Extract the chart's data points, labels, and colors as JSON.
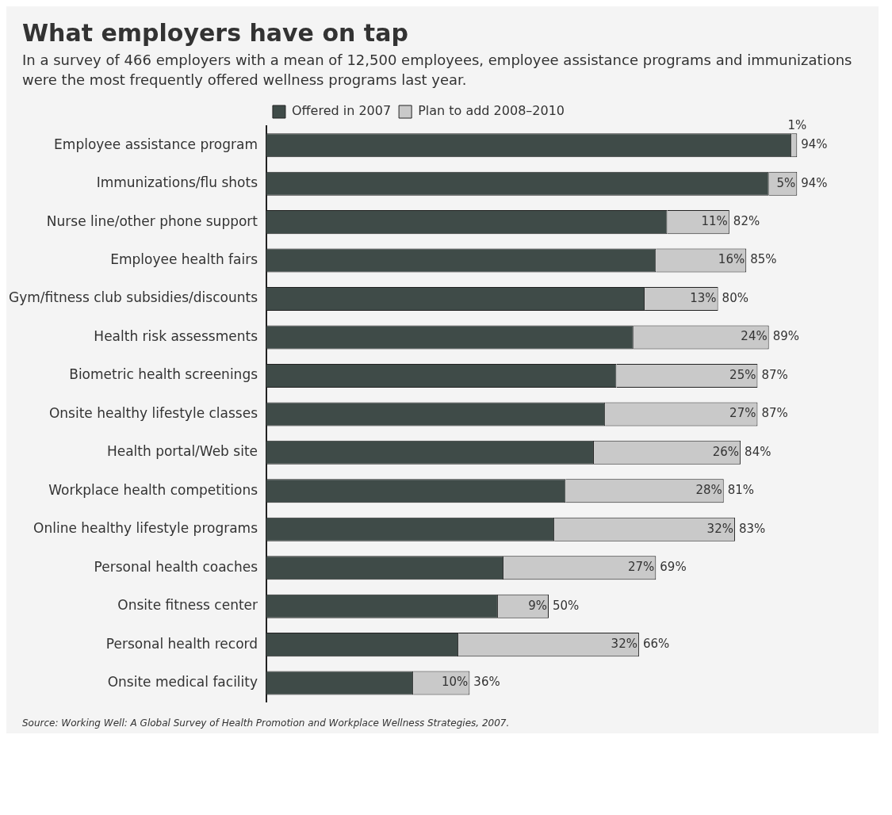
{
  "chart_data": {
    "type": "bar",
    "orientation": "horizontal",
    "stacked": true,
    "title": "What employers have on tap",
    "subtitle": "In a survey of 466 employers with a mean of 12,500 employees, employee assistance programs and immunizations were the most frequently offered wellness programs last year.",
    "categories": [
      "Employee assistance program",
      "Immunizations/flu shots",
      "Nurse line/other phone support",
      "Employee health fairs",
      "Gym/fitness club subsidies/discounts",
      "Health risk assessments",
      "Biometric health screenings",
      "Onsite healthy lifestyle classes",
      "Health portal/Web site",
      "Workplace health competitions",
      "Online healthy lifestyle programs",
      "Personal health coaches",
      "Onsite fitness center",
      "Personal health record",
      "Onsite medical facility"
    ],
    "series": [
      {
        "name": "Offered in 2007",
        "color": "#3f4b48",
        "values": [
          93,
          89,
          71,
          69,
          67,
          65,
          62,
          60,
          58,
          53,
          51,
          42,
          41,
          34,
          26
        ]
      },
      {
        "name": "Plan to add 2008–2010",
        "color": "#c9c9c9",
        "values": [
          1,
          5,
          11,
          16,
          13,
          24,
          25,
          27,
          26,
          28,
          32,
          27,
          9,
          32,
          10
        ],
        "value_labels": [
          "1%",
          "5%",
          "11%",
          "16%",
          "13%",
          "24%",
          "25%",
          "27%",
          "26%",
          "28%",
          "32%",
          "27%",
          "9%",
          "32%",
          "10%"
        ]
      }
    ],
    "totals": [
      "94%",
      "94%",
      "82%",
      "85%",
      "80%",
      "89%",
      "87%",
      "87%",
      "84%",
      "81%",
      "83%",
      "69%",
      "50%",
      "66%",
      "36%"
    ],
    "tick_labels": "y",
    "legend": "top",
    "annotations": [
      "Source: Working Well: A Global Survey of Health Promotion and Workplace Wellness Strategies, 2007."
    ]
  }
}
